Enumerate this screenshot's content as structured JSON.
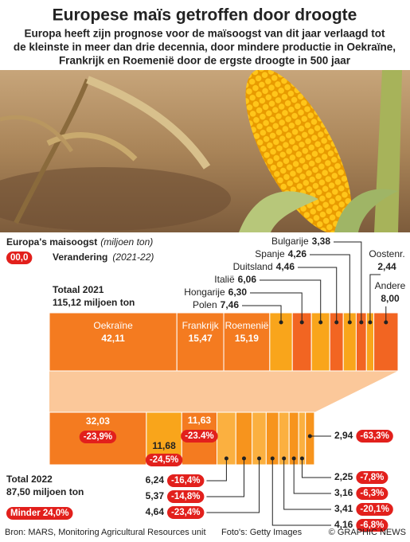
{
  "chart_data": {
    "type": "stacked-bar",
    "title": "Europese maïs getroffen door droogte",
    "subtitle": [
      "Europa heeft zijn prognose voor de maïsoogst van dit jaar verlaagd tot",
      "de kleinste in meer dan drie decennia, door mindere productie in Oekraïne,",
      "Frankrijk en Roemenië door de ergste droogte in 500 jaar"
    ],
    "legend": {
      "title": "Europa's maisoogst",
      "unit": "(miljoen ton)",
      "change_sample": "00,0",
      "change_title": "Verandering",
      "change_period": "(2021-22)"
    },
    "categories": [
      "Oekraïne",
      "Frankrijk",
      "Roemenië",
      "Polen",
      "Hongarije",
      "Italië",
      "Duitsland",
      "Spanje",
      "Bulgarije",
      "Oostenr.",
      "Andere"
    ],
    "series": [
      {
        "name": "Totaal 2021",
        "total": "115,12 miljoen ton",
        "values": [
          42.11,
          15.47,
          15.19,
          7.46,
          6.3,
          6.06,
          4.46,
          4.26,
          3.38,
          2.44,
          8.0
        ],
        "value_labels": [
          "42,11",
          "15,47",
          "15,19",
          "7,46",
          "6,30",
          "6,06",
          "4,46",
          "4,26",
          "3,38",
          "2,44",
          "8,00"
        ],
        "colors": [
          "#f47b20",
          "#f47b20",
          "#f47b20",
          "#f9a51b",
          "#f26522",
          "#f9a51b",
          "#f26522",
          "#f9a51b",
          "#f26522",
          "#f9a51b",
          "#f26522"
        ]
      },
      {
        "name": "Total 2022",
        "total": "87,50 miljoen ton",
        "change": "Minder 24,0%",
        "values": [
          32.03,
          11.68,
          11.63,
          6.24,
          5.37,
          4.64,
          4.16,
          3.41,
          3.16,
          2.25,
          2.94
        ],
        "value_labels": [
          "32,03",
          "11,68",
          "11,63",
          "6,24",
          "5,37",
          "4,64",
          "4,16",
          "3,41",
          "3,16",
          "2,25",
          "2,94"
        ],
        "change_labels": [
          "-23,9%",
          "-24,5%",
          "-23.4%",
          "-16,4%",
          "-14,8%",
          "-23,4%",
          "-6,8%",
          "-20,1%",
          "-6,3%",
          "-7,8%",
          "-63,3%"
        ],
        "colors": [
          "#f47b20",
          "#f9a51b",
          "#f47b20",
          "#fbb040",
          "#f7941d",
          "#fbb040",
          "#f7941d",
          "#fbb040",
          "#f7941d",
          "#fbb040",
          "#f7941d"
        ]
      }
    ],
    "source": "Bron: MARS, Monitoring Agricultural Resources unit",
    "credit": "Foto's: Getty Images",
    "copyright": "© GRAPHIC NEWS"
  }
}
